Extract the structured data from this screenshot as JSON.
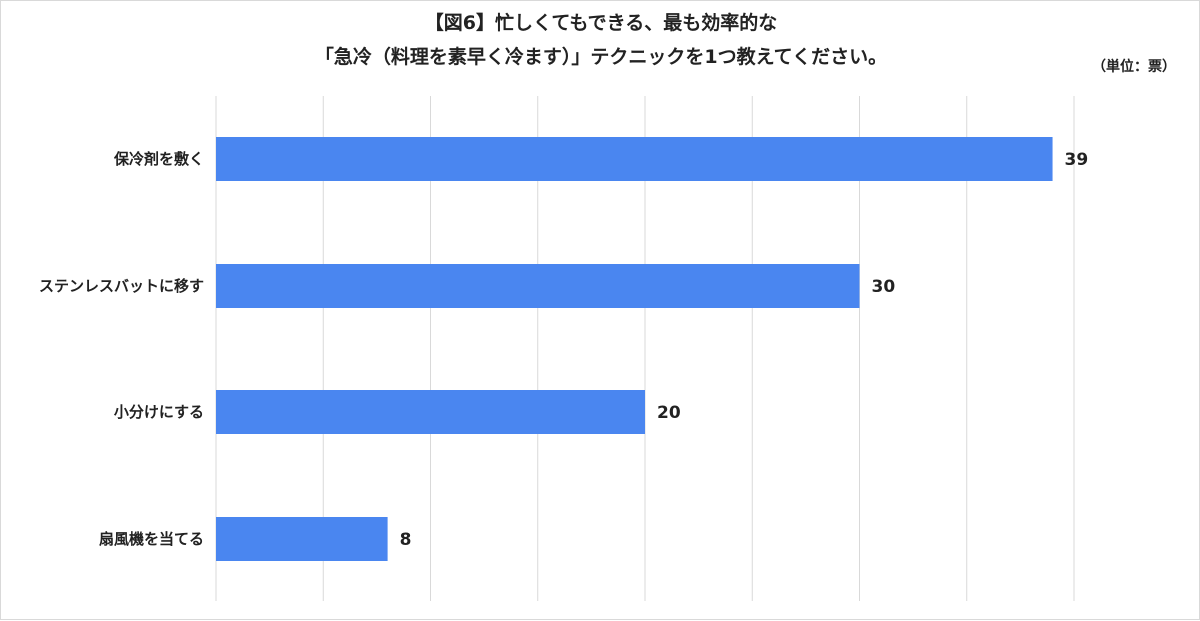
{
  "chart_data": {
    "type": "bar",
    "orientation": "horizontal",
    "title_lines": [
      "【図6】忙しくてもできる、最も効率的な",
      "「急冷（料理を素早く冷ます）」テクニックを1つ教えてください。"
    ],
    "unit_label": "（単位：票）",
    "categories": [
      "保冷剤を敷く",
      "ステンレスバットに移す",
      "小分けにする",
      "扇風機を当てる"
    ],
    "values": [
      39,
      30,
      20,
      8
    ],
    "value_labels": [
      "39",
      "30",
      "20",
      "8"
    ],
    "xlim": [
      0,
      40
    ],
    "grid": true,
    "bar_color": "#4a86f0"
  }
}
